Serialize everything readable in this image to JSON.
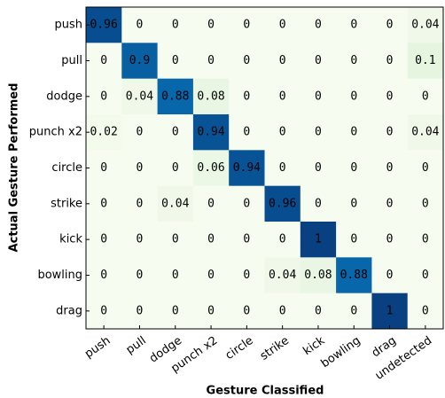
{
  "chart_data": {
    "type": "heatmap",
    "xlabel": "Gesture Classified",
    "ylabel": "Actual Gesture Performed",
    "x_categories": [
      "push",
      "pull",
      "dodge",
      "punch x2",
      "circle",
      "strike",
      "kick",
      "bowling",
      "drag",
      "undetected"
    ],
    "y_categories": [
      "push",
      "pull",
      "dodge",
      "punch x2",
      "circle",
      "strike",
      "kick",
      "bowling",
      "drag"
    ],
    "values": [
      [
        0.96,
        0,
        0,
        0,
        0,
        0,
        0,
        0,
        0,
        0.04
      ],
      [
        0,
        0.9,
        0,
        0,
        0,
        0,
        0,
        0,
        0,
        0.1
      ],
      [
        0,
        0.04,
        0.88,
        0.08,
        0,
        0,
        0,
        0,
        0,
        0
      ],
      [
        0.02,
        0,
        0,
        0.94,
        0,
        0,
        0,
        0,
        0,
        0.04
      ],
      [
        0,
        0,
        0,
        0.06,
        0.94,
        0,
        0,
        0,
        0,
        0
      ],
      [
        0,
        0,
        0.04,
        0,
        0,
        0.96,
        0,
        0,
        0,
        0
      ],
      [
        0,
        0,
        0,
        0,
        0,
        0,
        1,
        0,
        0,
        0
      ],
      [
        0,
        0,
        0,
        0,
        0,
        0.04,
        0.08,
        0.88,
        0,
        0
      ],
      [
        0,
        0,
        0,
        0,
        0,
        0,
        0,
        0,
        1,
        0
      ]
    ],
    "colormap": "GnBu"
  }
}
